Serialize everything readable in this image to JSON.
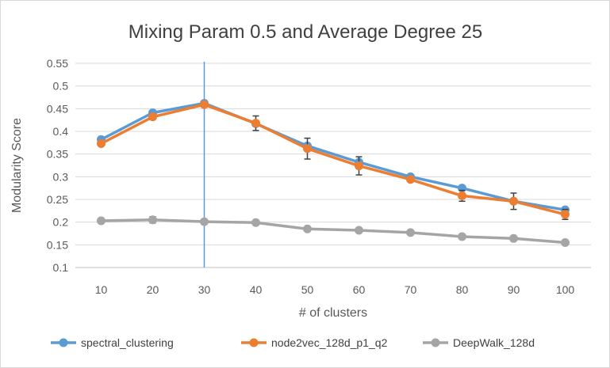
{
  "chart_data": {
    "type": "line",
    "title": "Mixing Param 0.5 and Average Degree 25",
    "xlabel": "# of clusters",
    "ylabel": "Modularity Score",
    "x": [
      10,
      20,
      30,
      40,
      50,
      60,
      70,
      80,
      90,
      100
    ],
    "x_tick_labels": [
      "10",
      "20",
      "30",
      "40",
      "50",
      "60",
      "70",
      "80",
      "90",
      "100"
    ],
    "ylim": [
      0.1,
      0.55
    ],
    "y_ticks": [
      0.1,
      0.15,
      0.2,
      0.25,
      0.3,
      0.35,
      0.4,
      0.45,
      0.5,
      0.55
    ],
    "y_tick_labels": [
      "0.1",
      "0.15",
      "0.2",
      "0.25",
      "0.3",
      "0.35",
      "0.4",
      "0.45",
      "0.5",
      "0.55"
    ],
    "grid": true,
    "legend_position": "bottom",
    "vertical_marker": {
      "x": 30,
      "color": "#5b9bd5"
    },
    "series": [
      {
        "name": "spectral_clustering",
        "color": "#5b9bd5",
        "values": [
          0.382,
          0.441,
          0.462,
          0.417,
          0.368,
          0.332,
          0.3,
          0.275,
          0.246,
          0.227
        ],
        "error": [
          0.003,
          0.004,
          0.004,
          0.004,
          0.004,
          0.003,
          0.002,
          0.002,
          0.002,
          0.002
        ]
      },
      {
        "name": "node2vec_128d_p1_q2",
        "color": "#ed7d31",
        "values": [
          0.373,
          0.432,
          0.459,
          0.418,
          0.362,
          0.324,
          0.294,
          0.258,
          0.246,
          0.217
        ],
        "error": [
          0.005,
          0.006,
          0.006,
          0.016,
          0.023,
          0.02,
          0.005,
          0.012,
          0.018,
          0.011
        ]
      },
      {
        "name": "DeepWalk_128d",
        "color": "#a5a5a5",
        "values": [
          0.203,
          0.205,
          0.201,
          0.199,
          0.185,
          0.182,
          0.177,
          0.168,
          0.164,
          0.155
        ],
        "error": [
          0.004,
          0.007,
          0.004,
          0.005,
          0.002,
          0.002,
          0.002,
          0.002,
          0.002,
          0.002
        ]
      }
    ]
  }
}
